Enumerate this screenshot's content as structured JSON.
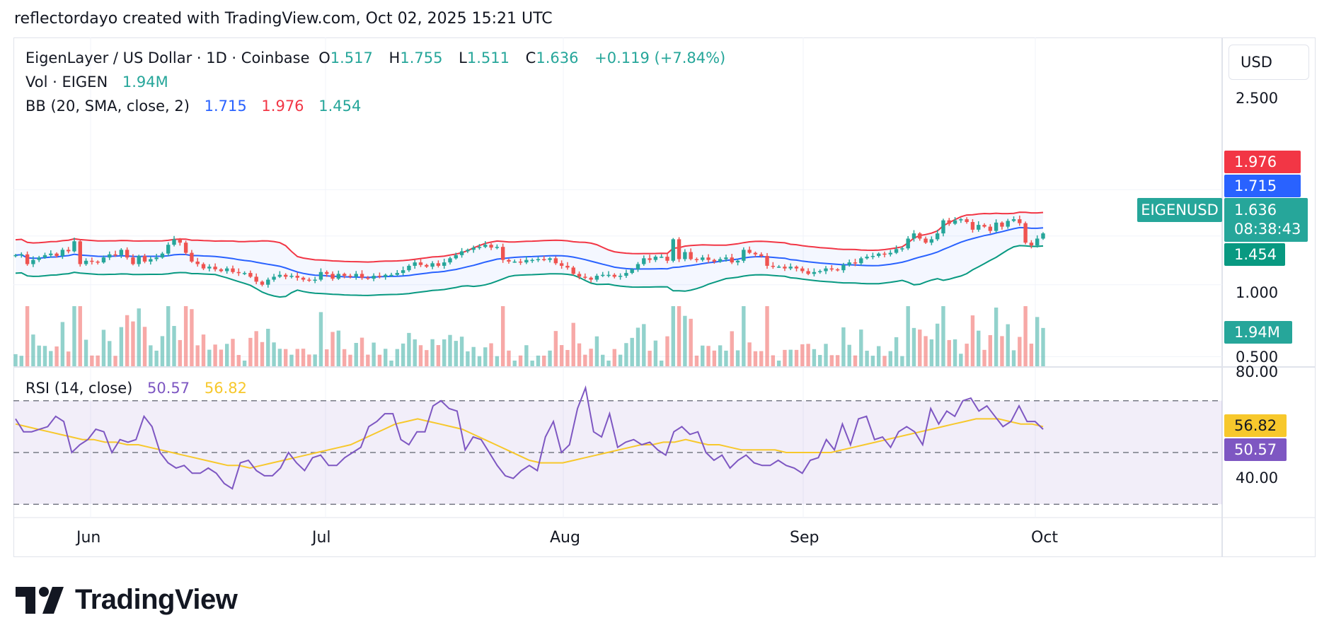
{
  "header": {
    "attribution": "reflectordayo created with TradingView.com, Oct 02, 2025 15:21 UTC"
  },
  "legend": {
    "symbol": "EigenLayer / US Dollar · 1D · Coinbase",
    "o_label": "O",
    "o_value": "1.517",
    "h_label": "H",
    "h_value": "1.755",
    "l_label": "L",
    "l_value": "1.511",
    "c_label": "C",
    "c_value": "1.636",
    "change": "+0.119 (+7.84%)",
    "vol_label": "Vol · EIGEN",
    "vol_value": "1.94M",
    "bb_label": "BB (20, SMA, close, 2)",
    "bb_basis": "1.715",
    "bb_upper": "1.976",
    "bb_lower": "1.454",
    "rsi_label": "RSI (14, close)",
    "rsi_value": "50.57",
    "rsi_ma": "56.82"
  },
  "currency": "USD",
  "price_axis": {
    "ticks": [
      "2.500",
      "1.000",
      "0.500"
    ]
  },
  "rsi_axis": {
    "ticks": [
      "80.00",
      "40.00"
    ]
  },
  "tags": {
    "bb_upper": "1.976",
    "bb_basis": "1.715",
    "symbol": "EIGENUSD",
    "last_price": "1.636",
    "countdown": "08:38:43",
    "bb_lower": "1.454",
    "volume": "1.94M",
    "rsi_ma": "56.82",
    "rsi": "50.57"
  },
  "time_axis": {
    "labels": [
      "Jun",
      "Jul",
      "Aug",
      "Sep",
      "Oct"
    ]
  },
  "brand": {
    "name": "TradingView"
  },
  "colors": {
    "up": "#26a69a",
    "down": "#ef5350",
    "bb_basis": "#2962ff",
    "bb_upper": "#f23645",
    "bb_lower": "#089981",
    "rsi": "#7e57c2",
    "rsi_ma": "#f7c82c"
  },
  "chart_data": {
    "type": "candlestick",
    "symbol": "EIGENUSD",
    "y_scale": "log",
    "ylim": [
      0.45,
      2.9
    ],
    "rsi_levels": [
      70,
      50,
      30
    ],
    "closes": [
      1.33,
      1.34,
      1.22,
      1.27,
      1.3,
      1.33,
      1.35,
      1.32,
      1.4,
      1.38,
      1.52,
      1.22,
      1.26,
      1.25,
      1.24,
      1.3,
      1.34,
      1.33,
      1.4,
      1.3,
      1.22,
      1.32,
      1.25,
      1.28,
      1.3,
      1.35,
      1.47,
      1.55,
      1.5,
      1.36,
      1.25,
      1.22,
      1.17,
      1.19,
      1.16,
      1.14,
      1.17,
      1.13,
      1.12,
      1.12,
      1.08,
      1.03,
      1.0,
      1.05,
      1.08,
      1.1,
      1.08,
      1.09,
      1.07,
      1.05,
      1.04,
      1.05,
      1.13,
      1.11,
      1.06,
      1.11,
      1.09,
      1.08,
      1.11,
      1.07,
      1.06,
      1.09,
      1.08,
      1.1,
      1.1,
      1.12,
      1.15,
      1.2,
      1.24,
      1.21,
      1.19,
      1.23,
      1.2,
      1.24,
      1.29,
      1.33,
      1.38,
      1.4,
      1.43,
      1.44,
      1.47,
      1.43,
      1.44,
      1.27,
      1.25,
      1.25,
      1.24,
      1.27,
      1.27,
      1.28,
      1.27,
      1.29,
      1.23,
      1.2,
      1.18,
      1.11,
      1.08,
      1.07,
      1.05,
      1.09,
      1.1,
      1.1,
      1.08,
      1.09,
      1.12,
      1.16,
      1.22,
      1.29,
      1.27,
      1.31,
      1.31,
      1.26,
      1.55,
      1.28,
      1.37,
      1.28,
      1.27,
      1.3,
      1.27,
      1.25,
      1.28,
      1.3,
      1.24,
      1.26,
      1.4,
      1.36,
      1.34,
      1.32,
      1.2,
      1.19,
      1.19,
      1.17,
      1.19,
      1.17,
      1.14,
      1.11,
      1.13,
      1.14,
      1.17,
      1.16,
      1.15,
      1.21,
      1.24,
      1.23,
      1.29,
      1.31,
      1.32,
      1.35,
      1.34,
      1.36,
      1.41,
      1.42,
      1.56,
      1.64,
      1.56,
      1.5,
      1.55,
      1.64,
      1.86,
      1.8,
      1.86,
      1.88,
      1.83,
      1.7,
      1.78,
      1.75,
      1.68,
      1.82,
      1.75,
      1.85,
      1.88,
      1.81,
      1.5,
      1.46,
      1.56,
      1.64
    ],
    "rsi": [
      63,
      58,
      58,
      59,
      60,
      64,
      62,
      50,
      53,
      55,
      59,
      58,
      50,
      55,
      54,
      55,
      64,
      60,
      50,
      46,
      44,
      45,
      42,
      42,
      44,
      42,
      38,
      36,
      46,
      47,
      43,
      41,
      41,
      44,
      50,
      46,
      43,
      48,
      49,
      45,
      45,
      48,
      50,
      52,
      60,
      62,
      65,
      65,
      55,
      53,
      58,
      58,
      68,
      70,
      67,
      66,
      51,
      56,
      55,
      50,
      45,
      41,
      40,
      43,
      45,
      43,
      56,
      62,
      50,
      53,
      67,
      75,
      58,
      56,
      65,
      52,
      54,
      55,
      53,
      54,
      51,
      49,
      58,
      60,
      57,
      58,
      50,
      47,
      49,
      44,
      47,
      49,
      46,
      45,
      45,
      47,
      45,
      44,
      42,
      47,
      48,
      55,
      51,
      61,
      53,
      63,
      64,
      55,
      56,
      52,
      58,
      60,
      58,
      53,
      67,
      61,
      66,
      64,
      70,
      71,
      66,
      68,
      64,
      60,
      62,
      68,
      62,
      62,
      59
    ],
    "rsi_ma": [
      61,
      60,
      59,
      58,
      57,
      56,
      55,
      55,
      54,
      54,
      53,
      53,
      52,
      51,
      50,
      49,
      48,
      47,
      46,
      45,
      45,
      44,
      45,
      46,
      47,
      48,
      49,
      50,
      51,
      52,
      53,
      55,
      57,
      59,
      61,
      62,
      63,
      62,
      61,
      60,
      59,
      57,
      55,
      53,
      51,
      49,
      47,
      46,
      46,
      46,
      47,
      48,
      49,
      50,
      51,
      52,
      53,
      53,
      54,
      54,
      55,
      54,
      53,
      53,
      52,
      51,
      51,
      51,
      51,
      50,
      50,
      50,
      50,
      50,
      51,
      52,
      53,
      54,
      55,
      56,
      57,
      58,
      59,
      60,
      61,
      62,
      63,
      63,
      63,
      62,
      61,
      61,
      60
    ],
    "last": {
      "open": 1.517,
      "high": 1.755,
      "low": 1.511,
      "close": 1.636,
      "volume": "1.94M"
    }
  }
}
